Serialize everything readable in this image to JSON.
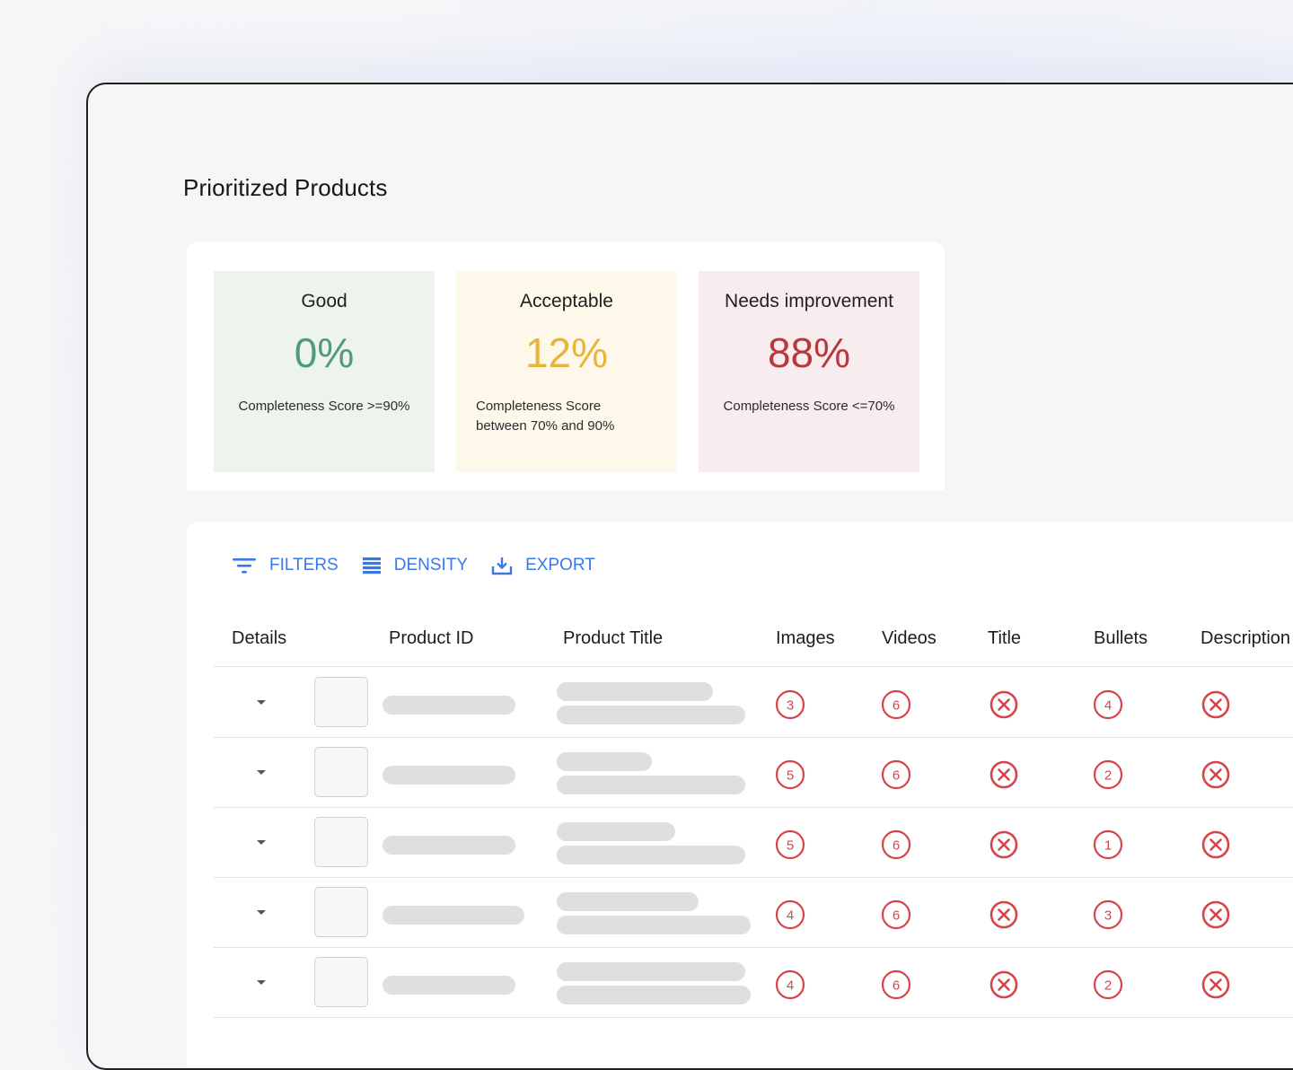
{
  "page": {
    "title": "Prioritized Products"
  },
  "summary": [
    {
      "label": "Good",
      "value": "0%",
      "description": "Completeness Score >=90%",
      "color": "#4f9b7c"
    },
    {
      "label": "Acceptable",
      "value": "12%",
      "description_line1": "Completeness Score",
      "description_line2": "between 70% and 90%",
      "color": "#e8b53c"
    },
    {
      "label": "Needs improvement",
      "value": "88%",
      "description": "Completeness Score <=70%",
      "color": "#b8393d"
    }
  ],
  "toolbar": {
    "filters_label": "FILTERS",
    "density_label": "DENSITY",
    "export_label": "EXPORT",
    "accent_color": "#3a78e6"
  },
  "table": {
    "columns": [
      "Details",
      "Product ID",
      "Product Title",
      "Images",
      "Videos",
      "Title",
      "Bullets",
      "Description"
    ],
    "rows": [
      {
        "images": "3",
        "videos": "6",
        "title": "x-icon",
        "bullets": "4",
        "description": "x-icon"
      },
      {
        "images": "5",
        "videos": "6",
        "title": "x-icon",
        "bullets": "2",
        "description": "x-icon"
      },
      {
        "images": "5",
        "videos": "6",
        "title": "x-icon",
        "bullets": "1",
        "description": "x-icon"
      },
      {
        "images": "4",
        "videos": "6",
        "title": "x-icon",
        "bullets": "3",
        "description": "x-icon"
      },
      {
        "images": "4",
        "videos": "6",
        "title": "x-icon",
        "bullets": "2",
        "description": "x-icon"
      }
    ],
    "score_color": "#d8434a"
  }
}
